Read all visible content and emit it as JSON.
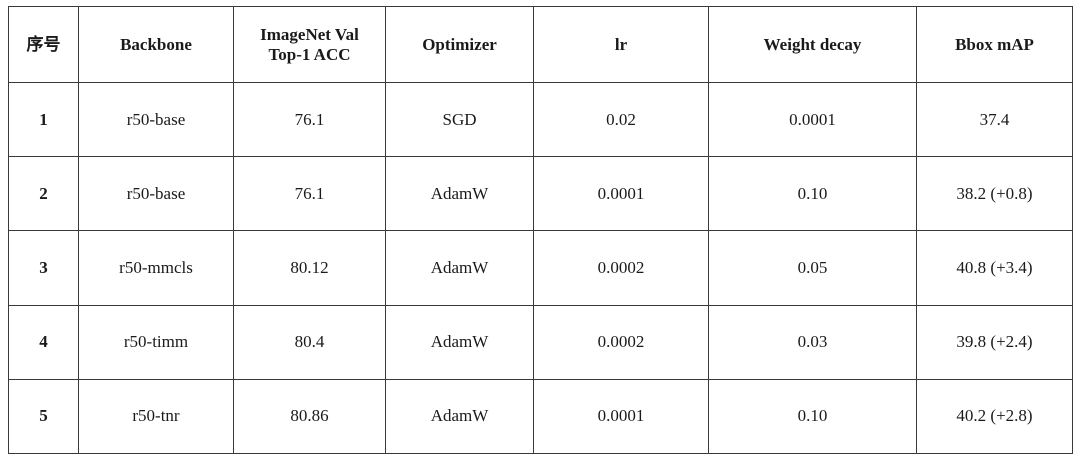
{
  "table": {
    "headers": {
      "index": "序号",
      "backbone": "Backbone",
      "acc_line1": "ImageNet Val",
      "acc_line2": "Top-1 ACC",
      "optimizer": "Optimizer",
      "lr": "lr",
      "weight_decay": "Weight decay",
      "bbox_map": "Bbox mAP"
    },
    "rows": [
      {
        "index": "1",
        "backbone": "r50-base",
        "acc": "76.1",
        "optimizer": "SGD",
        "lr": "0.02",
        "weight_decay": "0.0001",
        "bbox_map": "37.4"
      },
      {
        "index": "2",
        "backbone": "r50-base",
        "acc": "76.1",
        "optimizer": "AdamW",
        "lr": "0.0001",
        "weight_decay": "0.10",
        "bbox_map": "38.2 (+0.8)"
      },
      {
        "index": "3",
        "backbone": "r50-mmcls",
        "acc": "80.12",
        "optimizer": "AdamW",
        "lr": "0.0002",
        "weight_decay": "0.05",
        "bbox_map": "40.8 (+3.4)"
      },
      {
        "index": "4",
        "backbone": "r50-timm",
        "acc": "80.4",
        "optimizer": "AdamW",
        "lr": "0.0002",
        "weight_decay": "0.03",
        "bbox_map": "39.8 (+2.4)"
      },
      {
        "index": "5",
        "backbone": "r50-tnr",
        "acc": "80.86",
        "optimizer": "AdamW",
        "lr": "0.0001",
        "weight_decay": "0.10",
        "bbox_map": "40.2 (+2.8)"
      }
    ]
  }
}
